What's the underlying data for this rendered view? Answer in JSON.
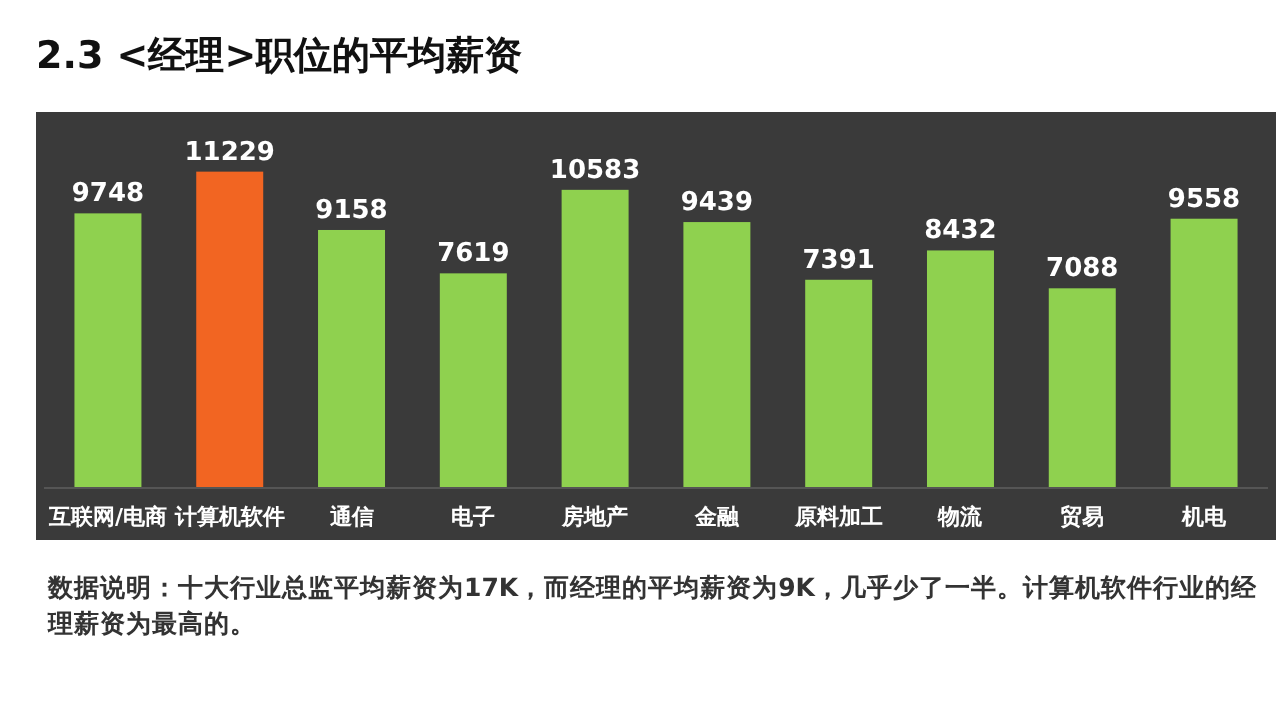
{
  "chart_data": {
    "type": "bar",
    "title": "2.3  <经理>职位的平均薪资",
    "categories": [
      "互联网/电商",
      "计算机软件",
      "通信",
      "电子",
      "房地产",
      "金融",
      "原料加工",
      "物流",
      "贸易",
      "机电"
    ],
    "values": [
      9748,
      11229,
      9158,
      7619,
      10583,
      9439,
      7391,
      8432,
      7088,
      9558
    ],
    "colors": [
      "#8fd14f",
      "#f26522",
      "#8fd14f",
      "#8fd14f",
      "#8fd14f",
      "#8fd14f",
      "#8fd14f",
      "#8fd14f",
      "#8fd14f",
      "#8fd14f"
    ],
    "data_labels": true,
    "annotations": [
      "数据说明：十大行业总监平均薪资为17K，而经理的平均薪资为9K，几乎少了一半。计算机软件行业的经理薪资为最高的。"
    ]
  }
}
